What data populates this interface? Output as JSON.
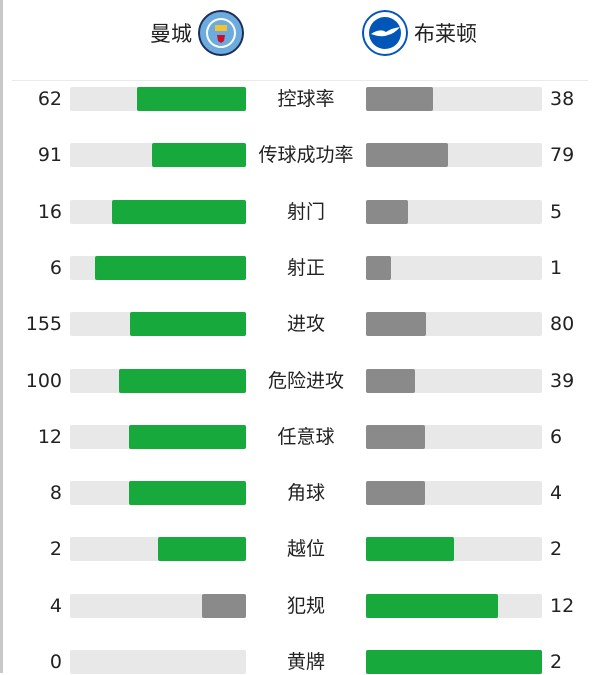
{
  "home": {
    "name": "曼城",
    "logo": "manchester-city-crest"
  },
  "away": {
    "name": "布莱顿",
    "logo": "brighton-crest"
  },
  "colors": {
    "leader": "#17a93b",
    "trailer": "#8a8a8a",
    "track": "#e8e8e8"
  },
  "stats": [
    {
      "label": "控球率",
      "home": 62,
      "away": 38
    },
    {
      "label": "传球成功率",
      "home": 91,
      "away": 79
    },
    {
      "label": "射门",
      "home": 16,
      "away": 5
    },
    {
      "label": "射正",
      "home": 6,
      "away": 1
    },
    {
      "label": "进攻",
      "home": 155,
      "away": 80
    },
    {
      "label": "危险进攻",
      "home": 100,
      "away": 39
    },
    {
      "label": "任意球",
      "home": 12,
      "away": 6
    },
    {
      "label": "角球",
      "home": 8,
      "away": 4
    },
    {
      "label": "越位",
      "home": 2,
      "away": 2
    },
    {
      "label": "犯规",
      "home": 4,
      "away": 12
    },
    {
      "label": "黄牌",
      "home": 0,
      "away": 2
    }
  ]
}
